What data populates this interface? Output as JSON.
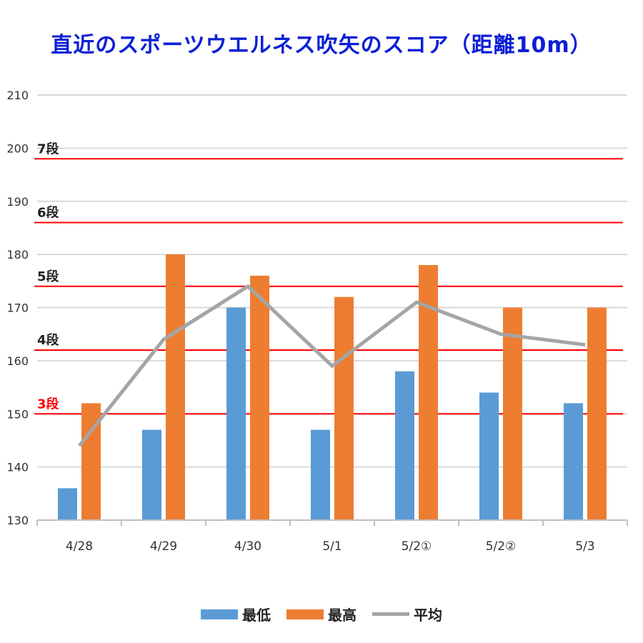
{
  "chart_data": {
    "type": "bar",
    "title": "直近のスポーツウエルネス吹矢のスコア（距離10m）",
    "categories": [
      "4/28",
      "4/29",
      "4/30",
      "5/1",
      "5/2①",
      "5/2②",
      "5/3"
    ],
    "series": [
      {
        "name": "最低",
        "kind": "bar",
        "color": "#5b9bd5",
        "values": [
          136,
          147,
          170,
          147,
          158,
          154,
          152
        ]
      },
      {
        "name": "最高",
        "kind": "bar",
        "color": "#ed7d31",
        "values": [
          152,
          180,
          176,
          172,
          178,
          170,
          170
        ]
      },
      {
        "name": "平均",
        "kind": "line",
        "color": "#a5a5a5",
        "values": [
          144,
          164,
          174,
          159,
          171,
          165,
          163
        ]
      }
    ],
    "ylim": [
      130,
      210
    ],
    "yticks": [
      130,
      140,
      150,
      160,
      170,
      180,
      190,
      200,
      210
    ],
    "grid": true,
    "legend_position": "bottom",
    "reference_lines": [
      {
        "label": "3段",
        "value": 150,
        "label_color": "#ff0000"
      },
      {
        "label": "4段",
        "value": 162,
        "label_color": "#222222"
      },
      {
        "label": "5段",
        "value": 174,
        "label_color": "#222222"
      },
      {
        "label": "6段",
        "value": 186,
        "label_color": "#222222"
      },
      {
        "label": "7段",
        "value": 198,
        "label_color": "#222222"
      }
    ],
    "reference_line_color": "#ff0000",
    "title_color": "#0b1fd6"
  }
}
